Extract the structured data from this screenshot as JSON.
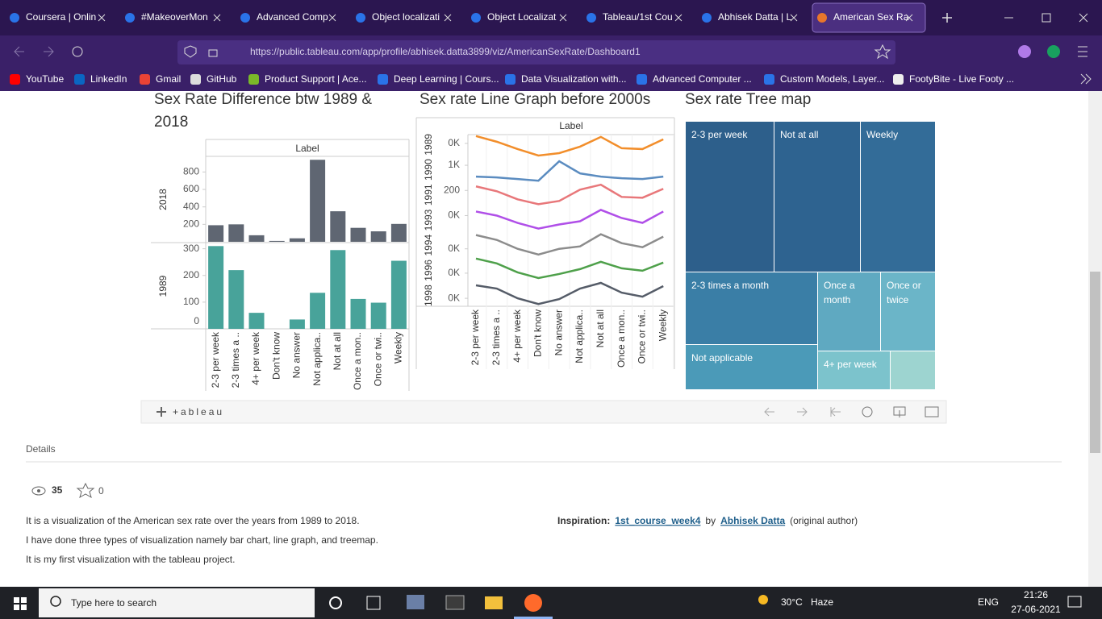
{
  "browser": {
    "tabs": [
      "Coursera | Onlin",
      "#MakeoverMon",
      "Advanced Comp",
      "Object localizati",
      "Object Localizat",
      "Tableau/1st Cou",
      "Abhisek Datta | L",
      "American Sex Ra"
    ],
    "url": "https://public.tableau.com/app/profile/abhisek.datta3899/viz/AmericanSexRate/Dashboard1",
    "bookmarks": [
      "YouTube",
      "LinkedIn",
      "Gmail",
      "GitHub",
      "Product Support | Ace...",
      "Deep Learning | Cours...",
      "Data Visualization with...",
      "Advanced Computer ...",
      "Custom Models, Layer...",
      "FootyBite - Live Footy ..."
    ]
  },
  "chart_data": [
    {
      "type": "bar",
      "title": "Sex Rate Difference btw 1989 & 2018",
      "header": "Label",
      "categories": [
        "2-3 per week",
        "2-3 times a ..",
        "4+ per week",
        "Don't know",
        "No answer",
        "Not applica..",
        "Not at all",
        "Once a mon..",
        "Once or twi..",
        "Weekly"
      ],
      "series": [
        {
          "name": "2018",
          "color": "#5f6672",
          "values": [
            190,
            200,
            75,
            10,
            40,
            940,
            350,
            160,
            120,
            205
          ],
          "ylim": [
            0,
            970
          ],
          "yticks": [
            200,
            400,
            600,
            800
          ]
        },
        {
          "name": "1989",
          "color": "#48a39a",
          "values": [
            310,
            220,
            60,
            0,
            35,
            135,
            295,
            112,
            98,
            255
          ],
          "ylim": [
            0,
            320
          ],
          "yticks": [
            0,
            100,
            200,
            300
          ]
        }
      ]
    },
    {
      "type": "line",
      "title": "Sex rate Line Graph before 2000s",
      "header": "Label",
      "categories": [
        "2-3 per week",
        "2-3 times a ..",
        "4+ per week",
        "Don't know",
        "No answer",
        "Not applica..",
        "Not at all",
        "Once a mon..",
        "Once or twi..",
        "Weekly"
      ],
      "series": [
        {
          "name": "1989",
          "color": "#f28e2b",
          "values": [
            26,
            19,
            10,
            2,
            5,
            13,
            25,
            11,
            10,
            22
          ],
          "ylim": [
            0,
            31
          ],
          "yticks": [
            {
              "value": 17,
              "label": "0K"
            }
          ]
        },
        {
          "name": "1990",
          "color": "#5b8cc0",
          "values": [
            7,
            6,
            4,
            2,
            26,
            11,
            7,
            5,
            4,
            7
          ],
          "ylim": [
            0,
            31
          ],
          "yticks": [
            {
              "value": 21,
              "label": "1K"
            }
          ]
        },
        {
          "name": "1991",
          "color": "#e8777a",
          "values": [
            26,
            20,
            10,
            4,
            8,
            22,
            28,
            13,
            12,
            23
          ],
          "ylim": [
            0,
            31
          ],
          "yticks": [
            {
              "value": 21,
              "label": "200"
            }
          ]
        },
        {
          "name": "1993",
          "color": "#b04fe8",
          "values": [
            26,
            21,
            12,
            5,
            10,
            14,
            28,
            18,
            12,
            26
          ],
          "ylim": [
            0,
            31
          ],
          "yticks": [
            {
              "value": 21,
              "label": "0K"
            }
          ]
        },
        {
          "name": "1994",
          "color": "#8c8c8c",
          "values": [
            28,
            22,
            11,
            4,
            11,
            14,
            29,
            18,
            13,
            26
          ],
          "ylim": [
            0,
            31
          ],
          "yticks": [
            {
              "value": 11,
              "label": "0K"
            }
          ]
        },
        {
          "name": "1996",
          "color": "#4ea04a",
          "values": [
            30,
            24,
            13,
            6,
            11,
            17,
            26,
            18,
            15,
            25
          ],
          "ylim": [
            0,
            31
          ],
          "yticks": [
            {
              "value": 12,
              "label": "0K"
            }
          ]
        },
        {
          "name": "1998",
          "color": "#555c68",
          "values": [
            28,
            24,
            12,
            5,
            11,
            24,
            31,
            19,
            14,
            27
          ],
          "ylim": [
            0,
            31
          ],
          "yticks": [
            {
              "value": 12,
              "label": "0K"
            }
          ]
        }
      ]
    },
    {
      "type": "treemap",
      "title": "Sex rate Tree map",
      "categories": [
        "2-3 per week",
        "Not at all",
        "Weekly",
        "2-3 times a month",
        "Once a month",
        "Once or twice",
        "Not applicable",
        "4+ per week",
        null
      ],
      "values": [
        500,
        490,
        430,
        330,
        170,
        148,
        205,
        100,
        60
      ],
      "colors": [
        "#2d5f8b",
        "#2e6390",
        "#336c98",
        "#3a7ea6",
        "#5fa9c1",
        "#6bb5c8",
        "#4b9ab8",
        "#7cc3cc",
        "#9dd4d0"
      ]
    }
  ],
  "tableau_logo": "+ableau",
  "details": {
    "heading": "Details",
    "views": 35,
    "favorites": 0,
    "description": [
      "It is a visualization of the American sex rate over the years from 1989 to 2018.",
      "I have done three types of visualization namely bar chart, line graph, and treemap.",
      "It is my first visualization with the tableau project."
    ],
    "inspiration": {
      "label": "Inspiration:",
      "link": "1st_course_week4",
      "by": "by",
      "author": "Abhisek Datta",
      "note": "(original author)"
    }
  },
  "taskbar": {
    "search": "Type here to search",
    "weather": "30°C",
    "condition": "Haze",
    "language": "ENG",
    "time": "21:26",
    "date": "27-06-2021"
  }
}
